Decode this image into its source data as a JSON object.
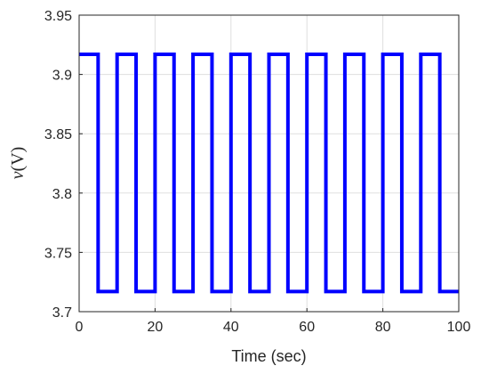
{
  "chart_data": {
    "type": "line",
    "title": "",
    "xlabel": "Time (sec)",
    "ylabel": "v(V)",
    "xlim": [
      0,
      100
    ],
    "ylim": [
      3.7,
      3.95
    ],
    "xticks": [
      "0",
      "20",
      "40",
      "60",
      "80",
      "100"
    ],
    "yticks": [
      "3.7",
      "3.75",
      "3.8",
      "3.85",
      "3.9",
      "3.95"
    ],
    "grid": true,
    "legend": "none",
    "series": [
      {
        "color": "#0000ff",
        "x": [
          0,
          5,
          5,
          10,
          10,
          15,
          15,
          20,
          20,
          25,
          25,
          30,
          30,
          35,
          35,
          40,
          40,
          45,
          45,
          50,
          50,
          55,
          55,
          60,
          60,
          65,
          65,
          70,
          70,
          75,
          75,
          80,
          80,
          85,
          85,
          90,
          90,
          95,
          95,
          100
        ],
        "y": [
          3.917,
          3.917,
          3.717,
          3.717,
          3.917,
          3.917,
          3.717,
          3.717,
          3.917,
          3.917,
          3.717,
          3.717,
          3.917,
          3.917,
          3.717,
          3.717,
          3.917,
          3.917,
          3.717,
          3.717,
          3.917,
          3.917,
          3.717,
          3.717,
          3.917,
          3.917,
          3.717,
          3.717,
          3.917,
          3.917,
          3.717,
          3.717,
          3.917,
          3.917,
          3.717,
          3.717,
          3.917,
          3.917,
          3.717,
          3.717
        ]
      }
    ]
  }
}
